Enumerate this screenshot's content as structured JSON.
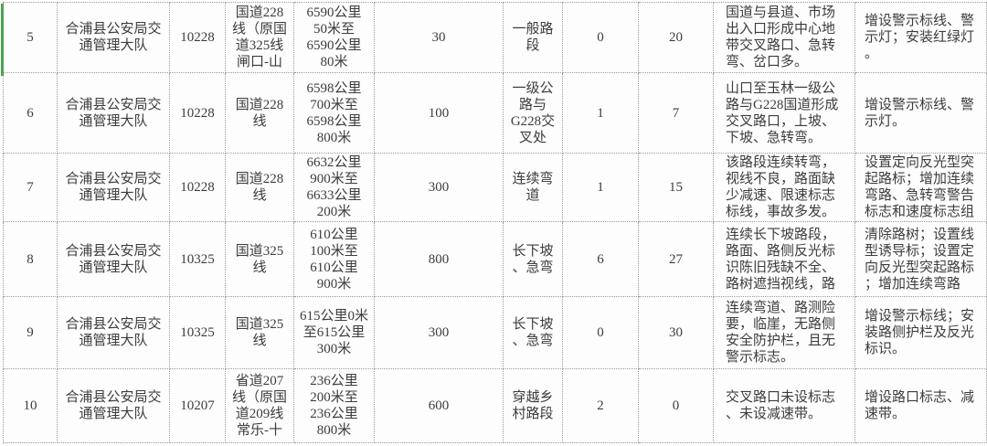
{
  "colors": {
    "accent_green": "#4EA24E",
    "grid_border": "#9A9A9A",
    "text": "#3C3C3C",
    "background": "#FDFDFD"
  },
  "table": {
    "rows": [
      {
        "seq": "5",
        "agency": "合浦县公安局交通管理大队",
        "route_code": "10228",
        "road_name": "国道228\n线（原国\n道325线\n闸口-山",
        "stake_range": "6590公里\n50米至\n6590公里\n80米",
        "length": "30",
        "segment_type": "一般路\n段",
        "count_a": "0",
        "count_b": "20",
        "problems": "国道与县道、市场出入口形成中心地带交叉路口、急转弯、岔口多。",
        "measures": "增设警示标线、警示灯；安装红绿灯。"
      },
      {
        "seq": "6",
        "agency": "合浦县公安局交通管理大队",
        "route_code": "10228",
        "road_name": "国道228\n线",
        "stake_range": "6598公里\n700米至\n6598公里\n800米",
        "length": "100",
        "segment_type": "一级公\n路与\nG228交\n叉处",
        "count_a": "1",
        "count_b": "7",
        "problems": "山口至玉林一级公路与G228国道形成交叉路口，上坡、下坡、急转弯。",
        "measures": "增设警示标线、警示灯。"
      },
      {
        "seq": "7",
        "agency": "合浦县公安局交通管理大队",
        "route_code": "10228",
        "road_name": "国道228\n线",
        "stake_range": "6632公里\n900米至\n6633公里\n200米",
        "length": "300",
        "segment_type": "连续弯\n道",
        "count_a": "1",
        "count_b": "15",
        "problems": "该路段连续转弯，视线不良，路面缺少减速、限速标志标线，事故多发。",
        "measures": "设置定向反光型突起路标；增加连续弯路、急转弯警告标志和速度标志组"
      },
      {
        "seq": "8",
        "agency": "合浦县公安局交通管理大队",
        "route_code": "10325",
        "road_name": "国道325\n线",
        "stake_range": "610公里\n100米至\n610公里\n900米",
        "length": "800",
        "segment_type": "长下坡\n、急弯",
        "count_a": "6",
        "count_b": "27",
        "problems": "连续长下坡路段，路面、路侧反光标识陈旧残缺不全、路树遮挡视线，路",
        "measures": "清除路树；设置线型诱导标；设置定向反光型突起路标；增加连续弯路"
      },
      {
        "seq": "9",
        "agency": "合浦县公安局交通管理大队",
        "route_code": "10325",
        "road_name": "国道325\n线",
        "stake_range": "615公里0米\n至615公里\n300米",
        "length": "300",
        "segment_type": "长下坡\n、急弯",
        "count_a": "0",
        "count_b": "30",
        "problems": "连续弯道、路测险要，临崖，无路侧安全防护栏，且无警示标志。",
        "measures": "增设警示标线；安装路侧护栏及反光标识。"
      },
      {
        "seq": "10",
        "agency": "合浦县公安局交通管理大队",
        "route_code": "10207",
        "road_name": "省道207\n线（原国\n道209线\n常乐-十",
        "stake_range": "236公里\n200米至\n236公里\n800米",
        "length": "600",
        "segment_type": "穿越乡\n村路段",
        "count_a": "2",
        "count_b": "0",
        "problems": "交叉路口未设标志、未设减速带。",
        "measures": "增设路口标志、减速带。"
      }
    ]
  }
}
